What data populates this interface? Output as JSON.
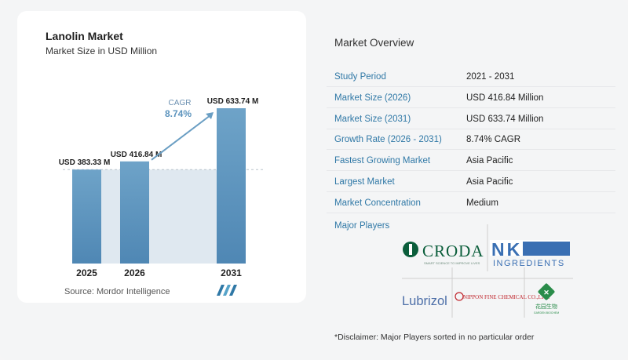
{
  "chart": {
    "title": "Lanolin Market",
    "subtitle": "Market Size in USD Million",
    "source": "Source:  Mordor Intelligence",
    "cagr_label": "CAGR",
    "cagr_value": "8.74%"
  },
  "chart_data": {
    "type": "bar",
    "categories": [
      "2025",
      "2026",
      "2031"
    ],
    "values": [
      383.33,
      416.84,
      633.74
    ],
    "data_labels": [
      "USD 383.33 M",
      "USD 416.84 M",
      "USD 633.74 M"
    ],
    "title": "Lanolin Market",
    "subtitle": "Market Size in USD Million",
    "xlabel": "",
    "ylabel": "",
    "ylim": [
      0,
      633.74
    ],
    "colors": {
      "bar": "#6a9ec3",
      "bar_gradient_end": "#4d86b3",
      "band": "#dfe8f0",
      "arrow": "#6a9ec3",
      "cagr": "#5b93bd"
    },
    "grid": false
  },
  "overview": {
    "title": "Market Overview",
    "rows": [
      {
        "label": "Study Period",
        "value": "2021 - 2031"
      },
      {
        "label": "Market Size (2026)",
        "value": "USD 416.84 Million"
      },
      {
        "label": "Market Size (2031)",
        "value": "USD 633.74 Million"
      },
      {
        "label": "Growth Rate (2026 - 2031)",
        "value": "8.74% CAGR"
      },
      {
        "label": "Fastest Growing Market",
        "value": "Asia Pacific"
      },
      {
        "label": "Largest Market",
        "value": "Asia Pacific"
      },
      {
        "label": "Market Concentration",
        "value": "Medium"
      }
    ]
  },
  "players": {
    "title": "Major Players",
    "logos": {
      "croda": "CRODA",
      "croda_tagline": "SMART SCIENCE TO IMPROVE LIVES",
      "nk": "NK",
      "nk_sub": "INGREDIENTS",
      "lubrizol": "Lubrizol",
      "nippon": "NIPPON FINE CHEMICAL CO.,LTD.",
      "huabang": "花园生物",
      "huabang_sub": "GARDEN BIOCHEM"
    },
    "disclaimer": "*Disclaimer: Major Players sorted in no particular order"
  },
  "colors": {
    "accent": "#2f78a6",
    "croda_green": "#0b5e3b",
    "nk_blue": "#3a6fb3",
    "lubrizol_blue": "#4d6fa8",
    "nippon_red": "#c0262d",
    "huabang_green": "#2a8c4a"
  }
}
